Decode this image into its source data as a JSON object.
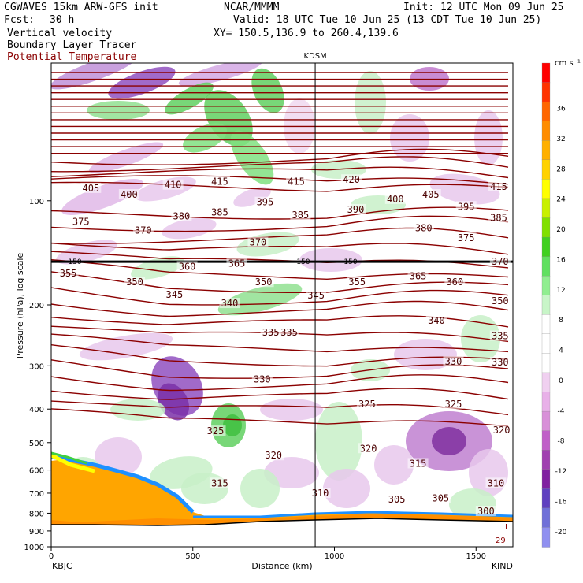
{
  "header": {
    "model": "CGWAVES 15km ARW-GFS init",
    "org": "NCAR/MMMM",
    "init": "Init: 12 UTC Mon 09 Jun 25",
    "fcst_label": "Fcst:",
    "fcst_value": "30 h",
    "valid": "Valid: 18 UTC Tue 10 Jun 25 (13 CDT Tue 10 Jun 25)",
    "field1": "Vertical velocity",
    "field2": "Boundary Layer Tracer",
    "field3": "Potential Temperature",
    "xy": "XY= 150.5,136.9 to 260.4,139.6"
  },
  "chart_data": {
    "type": "heatmap",
    "title": "KDSM",
    "xlabel": "Distance (km)",
    "ylabel": "Pressure (hPa), log scale",
    "xlim": [
      0,
      1630
    ],
    "ylim": [
      1000,
      40
    ],
    "y_scale": "log",
    "x_ticks": [
      0,
      500,
      1000,
      1500
    ],
    "y_ticks": [
      100,
      200,
      300,
      400,
      500,
      600,
      700,
      800,
      900,
      1000
    ],
    "left_endpoint": "KBJC",
    "right_endpoint": "KIND",
    "marker_line": {
      "label": "KDSM",
      "x": 932
    },
    "tropopause_level": {
      "label": "150",
      "pressure": 150
    },
    "colorbar": {
      "unit": "cm s⁻¹",
      "ticks": [
        "36",
        "32",
        "28",
        "24",
        "20",
        "16",
        "12",
        "8",
        "4",
        "0",
        "-4",
        "-8",
        "-12",
        "-16",
        "-20"
      ],
      "colors": [
        "#ff0000",
        "#ff3300",
        "#ff6600",
        "#ff8c00",
        "#ffb000",
        "#ffd200",
        "#ffff00",
        "#c8f000",
        "#80e000",
        "#40d020",
        "#60e060",
        "#90ee90",
        "#c8f5c8",
        "#ffffff",
        "#ffffff",
        "#ffffff",
        "#f0d0f0",
        "#e8b0e8",
        "#d890d8",
        "#c060c8",
        "#a040b0",
        "#8020a0",
        "#6040c0",
        "#7070d8",
        "#9090f0"
      ]
    },
    "theta_labels": [
      {
        "v": "405",
        "x": 140,
        "p": 92
      },
      {
        "v": "400",
        "x": 275,
        "p": 96
      },
      {
        "v": "410",
        "x": 430,
        "p": 90
      },
      {
        "v": "415",
        "x": 595,
        "p": 88
      },
      {
        "v": "415",
        "x": 865,
        "p": 88
      },
      {
        "v": "420",
        "x": 1060,
        "p": 87
      },
      {
        "v": "395",
        "x": 755,
        "p": 101
      },
      {
        "v": "385",
        "x": 595,
        "p": 108
      },
      {
        "v": "380",
        "x": 460,
        "p": 111
      },
      {
        "v": "375",
        "x": 105,
        "p": 115
      },
      {
        "v": "370",
        "x": 325,
        "p": 122
      },
      {
        "v": "370",
        "x": 730,
        "p": 132
      },
      {
        "v": "385",
        "x": 880,
        "p": 110
      },
      {
        "v": "390",
        "x": 1075,
        "p": 106
      },
      {
        "v": "400",
        "x": 1215,
        "p": 99
      },
      {
        "v": "405",
        "x": 1340,
        "p": 96
      },
      {
        "v": "395",
        "x": 1465,
        "p": 104
      },
      {
        "v": "415",
        "x": 1580,
        "p": 91
      },
      {
        "v": "385",
        "x": 1580,
        "p": 112
      },
      {
        "v": "380",
        "x": 1315,
        "p": 120
      },
      {
        "v": "375",
        "x": 1465,
        "p": 128
      },
      {
        "v": "370",
        "x": 1585,
        "p": 150
      },
      {
        "v": "355",
        "x": 60,
        "p": 162
      },
      {
        "v": "350",
        "x": 295,
        "p": 172
      },
      {
        "v": "360",
        "x": 480,
        "p": 155
      },
      {
        "v": "365",
        "x": 655,
        "p": 152
      },
      {
        "v": "350",
        "x": 750,
        "p": 172
      },
      {
        "v": "355",
        "x": 1080,
        "p": 172
      },
      {
        "v": "365",
        "x": 1295,
        "p": 165
      },
      {
        "v": "360",
        "x": 1425,
        "p": 172
      },
      {
        "v": "345",
        "x": 435,
        "p": 187
      },
      {
        "v": "340",
        "x": 630,
        "p": 198
      },
      {
        "v": "345",
        "x": 935,
        "p": 188
      },
      {
        "v": "335",
        "x": 775,
        "p": 240
      },
      {
        "v": "335",
        "x": 840,
        "p": 240
      },
      {
        "v": "340",
        "x": 1360,
        "p": 222
      },
      {
        "v": "350",
        "x": 1585,
        "p": 195
      },
      {
        "v": "335",
        "x": 1585,
        "p": 246
      },
      {
        "v": "330",
        "x": 745,
        "p": 328
      },
      {
        "v": "330",
        "x": 1420,
        "p": 292
      },
      {
        "v": "330",
        "x": 1585,
        "p": 293
      },
      {
        "v": "325",
        "x": 1115,
        "p": 387
      },
      {
        "v": "325",
        "x": 1420,
        "p": 387
      },
      {
        "v": "325",
        "x": 580,
        "p": 463
      },
      {
        "v": "320",
        "x": 1590,
        "p": 460
      },
      {
        "v": "320",
        "x": 785,
        "p": 545
      },
      {
        "v": "320",
        "x": 1120,
        "p": 520
      },
      {
        "v": "315",
        "x": 595,
        "p": 655
      },
      {
        "v": "315",
        "x": 1295,
        "p": 575
      },
      {
        "v": "310",
        "x": 1570,
        "p": 655
      },
      {
        "v": "310",
        "x": 950,
        "p": 700
      },
      {
        "v": "305",
        "x": 1220,
        "p": 730
      },
      {
        "v": "305",
        "x": 1375,
        "p": 725
      },
      {
        "v": "300",
        "x": 1535,
        "p": 790
      }
    ],
    "bottom_right_marks": [
      "L",
      "29"
    ]
  }
}
